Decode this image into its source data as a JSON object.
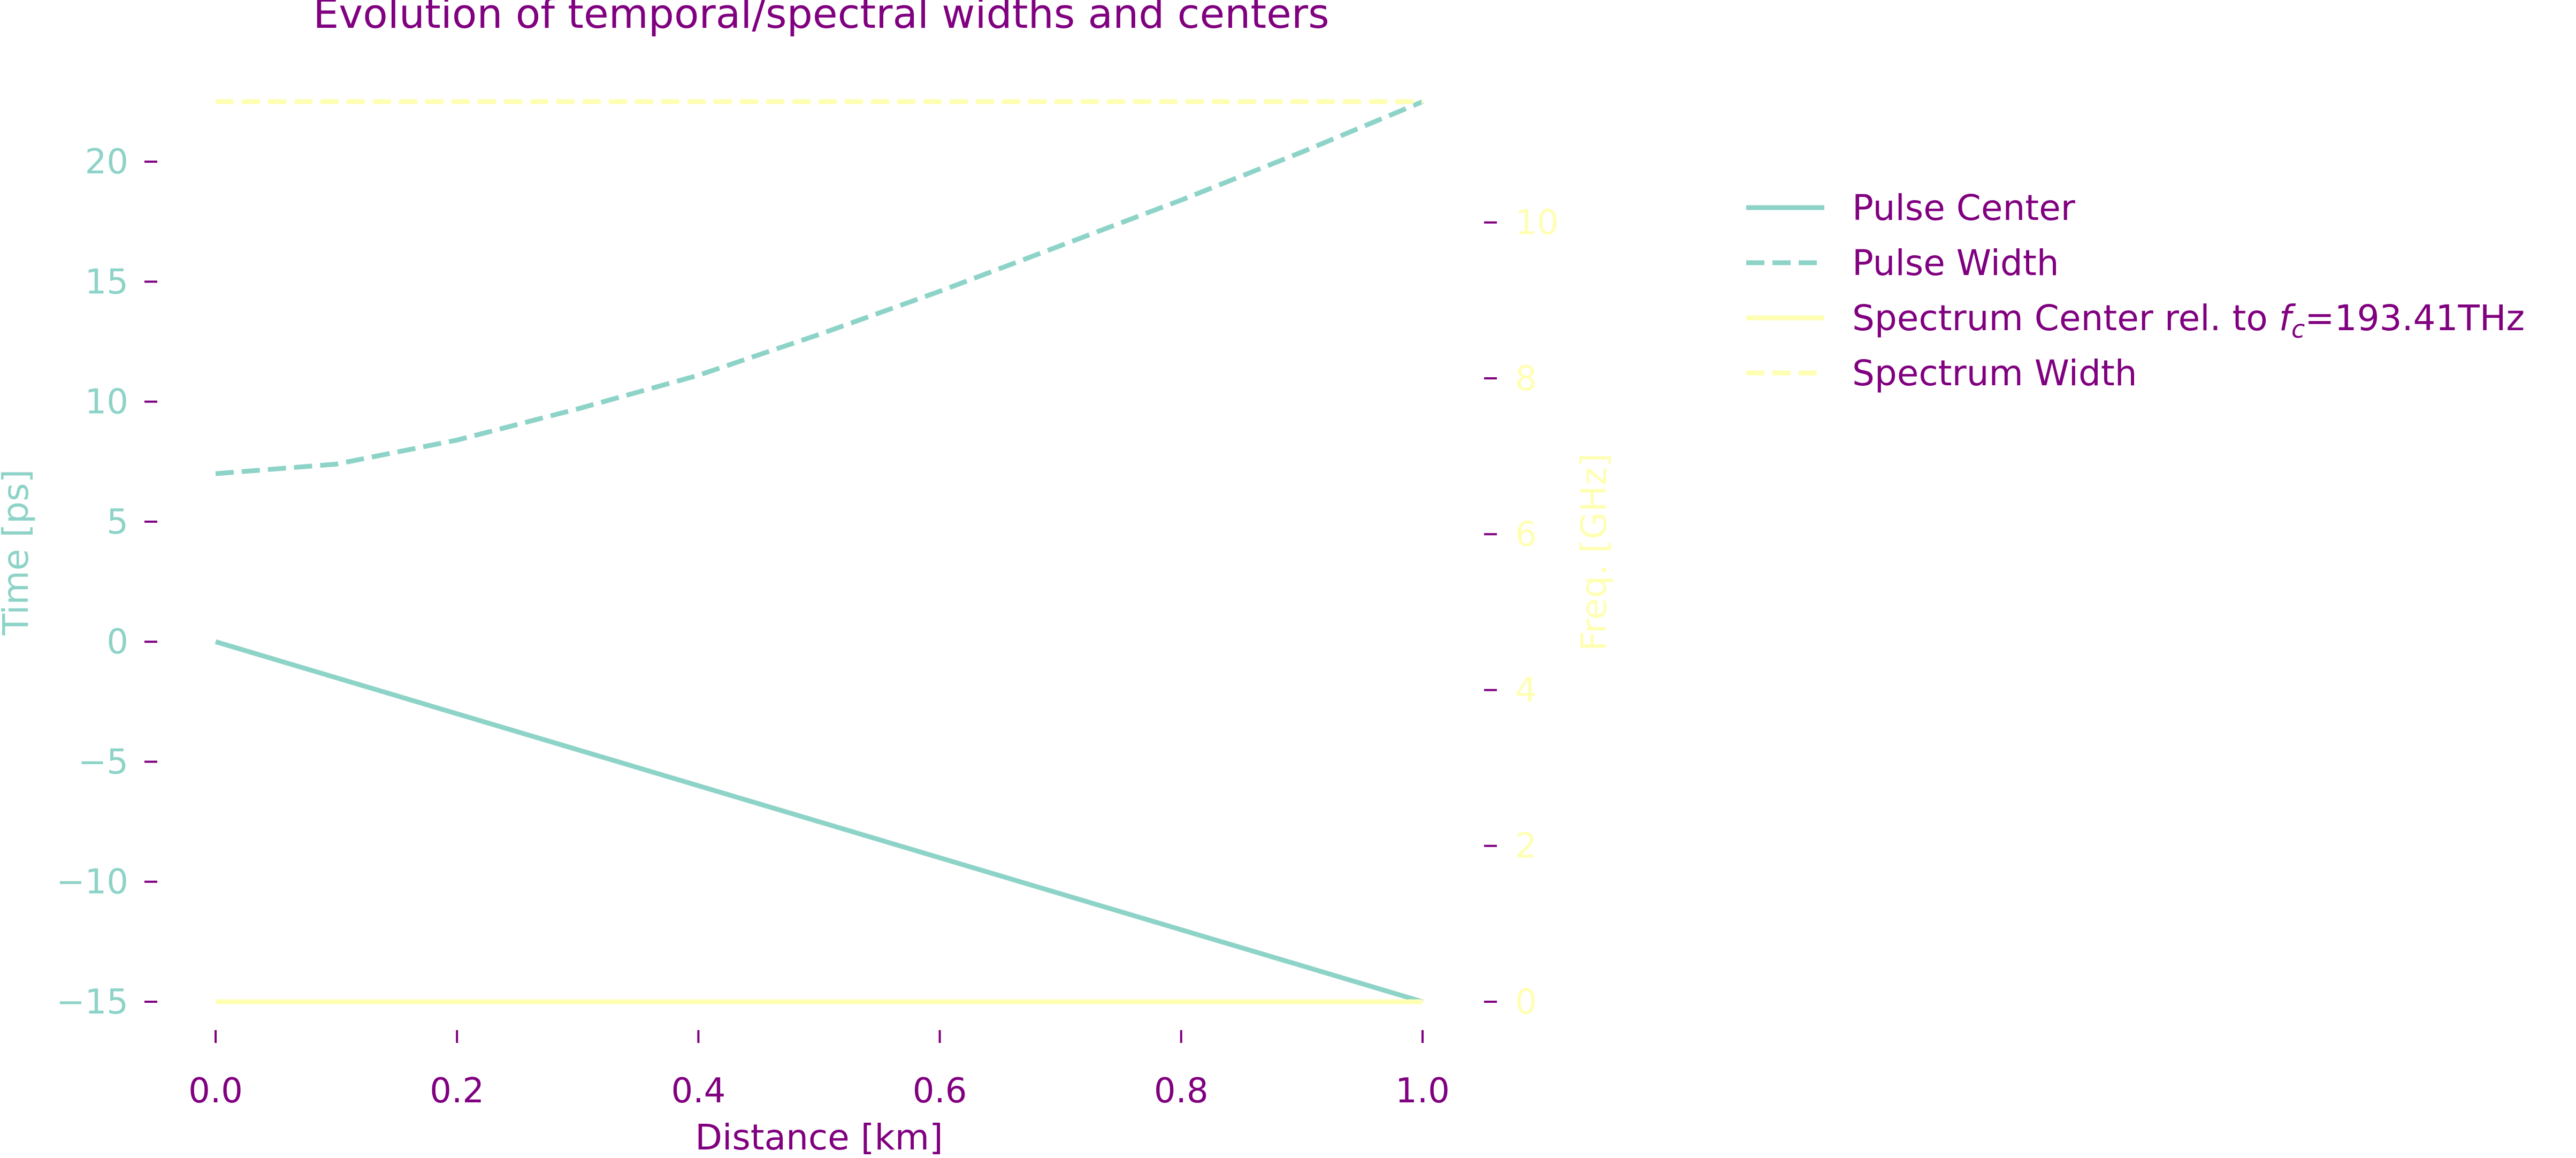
{
  "chart_data": {
    "type": "line",
    "title": "Evolution of temporal/spectral widths and centers",
    "xlabel": "Distance [km]",
    "ylabel_left": "Time [ps]",
    "ylabel_right": "Freq. [GHz]",
    "xlim": [
      0.0,
      1.0
    ],
    "ylim_left": [
      -15,
      22.5
    ],
    "ylim_right": [
      0,
      11.55
    ],
    "x_ticks": [
      "0.0",
      "0.2",
      "0.4",
      "0.6",
      "0.8",
      "1.0"
    ],
    "y_left_ticks": [
      "−15",
      "−10",
      "−5",
      "0",
      "5",
      "10",
      "15",
      "20"
    ],
    "y_right_ticks": [
      "0",
      "2",
      "4",
      "6",
      "8",
      "10"
    ],
    "grid": false,
    "legend_position": "right",
    "colors": {
      "text": "#800080",
      "time_series": "#8dd3c7",
      "freq_series": "#ffffb3"
    },
    "legend": [
      {
        "label": "Pulse Center",
        "style": "solid",
        "color": "#8dd3c7"
      },
      {
        "label": "Pulse Width",
        "style": "dashed",
        "color": "#8dd3c7"
      },
      {
        "label_prefix": "Spectrum Center rel. to ",
        "label_math_base": "f",
        "label_math_sub": "c",
        "label_suffix": "=193.41THz",
        "style": "solid",
        "color": "#ffffb3"
      },
      {
        "label": "Spectrum Width",
        "style": "dashed",
        "color": "#ffffb3"
      }
    ],
    "series": [
      {
        "name": "Pulse Center",
        "axis": "left",
        "style": "solid",
        "x": [
          0.0,
          0.1,
          0.2,
          0.3,
          0.4,
          0.5,
          0.6,
          0.7,
          0.8,
          0.9,
          1.0
        ],
        "y": [
          0.0,
          -1.5,
          -3.0,
          -4.5,
          -6.0,
          -7.5,
          -9.0,
          -10.5,
          -12.0,
          -13.5,
          -15.0
        ]
      },
      {
        "name": "Pulse Width",
        "axis": "left",
        "style": "dashed",
        "x": [
          0.0,
          0.1,
          0.2,
          0.3,
          0.4,
          0.5,
          0.6,
          0.7,
          0.8,
          0.9,
          1.0
        ],
        "y": [
          7.0,
          7.4,
          8.4,
          9.7,
          11.1,
          12.8,
          14.6,
          16.5,
          18.4,
          20.4,
          22.5
        ]
      },
      {
        "name": "Spectrum Center rel. to fc=193.41THz",
        "axis": "right",
        "style": "solid",
        "x": [
          0.0,
          1.0
        ],
        "y": [
          0.0,
          0.0
        ]
      },
      {
        "name": "Spectrum Width",
        "axis": "right",
        "style": "dashed",
        "x": [
          0.0,
          1.0
        ],
        "y": [
          11.55,
          11.55
        ]
      }
    ]
  }
}
